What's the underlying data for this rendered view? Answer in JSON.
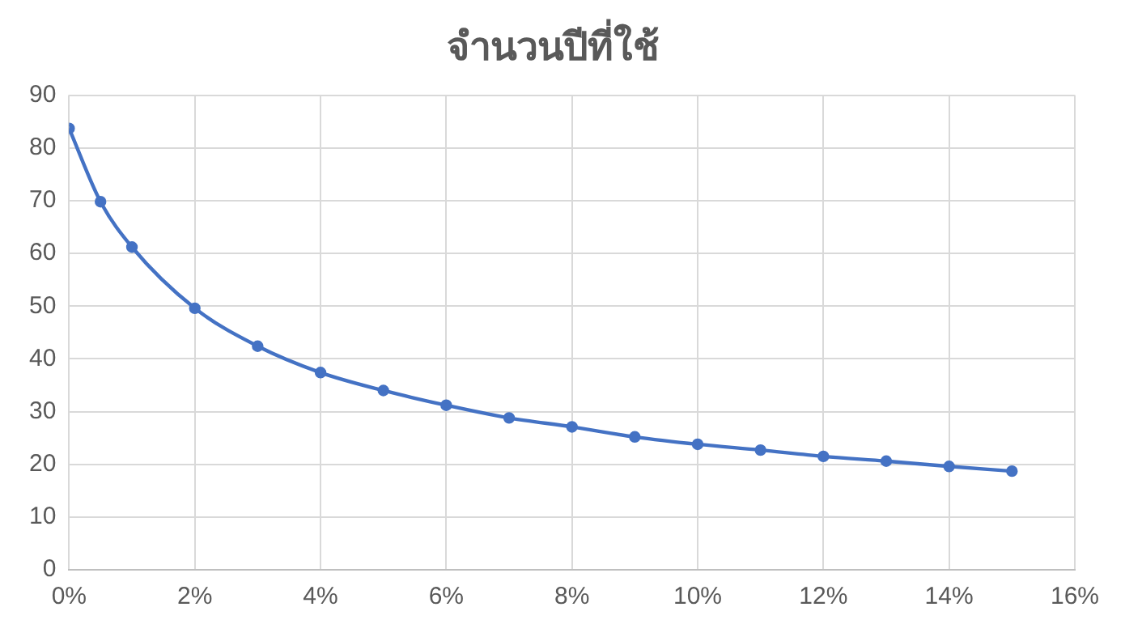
{
  "chart_data": {
    "type": "line",
    "title": "จำนวนปีที่ใช้",
    "x": [
      0,
      0.5,
      1,
      2,
      3,
      4,
      5,
      6,
      7,
      8,
      9,
      10,
      11,
      12,
      13,
      14,
      15
    ],
    "series": [
      {
        "color": "#4472c4",
        "values": [
          83.7,
          69.8,
          61.2,
          49.6,
          42.4,
          37.4,
          34.0,
          31.2,
          28.8,
          27.1,
          25.2,
          23.8,
          22.7,
          21.5,
          20.6,
          19.6,
          18.7
        ]
      }
    ],
    "xlim": [
      0,
      16
    ],
    "xticks": [
      {
        "value": 0,
        "label": "0%"
      },
      {
        "value": 2,
        "label": "2%"
      },
      {
        "value": 4,
        "label": "4%"
      },
      {
        "value": 6,
        "label": "6%"
      },
      {
        "value": 8,
        "label": "8%"
      },
      {
        "value": 10,
        "label": "10%"
      },
      {
        "value": 12,
        "label": "12%"
      },
      {
        "value": 14,
        "label": "14%"
      },
      {
        "value": 16,
        "label": "16%"
      }
    ],
    "ylim": [
      0,
      90
    ],
    "yticks": [
      0,
      10,
      20,
      30,
      40,
      50,
      60,
      70,
      80,
      90
    ],
    "grid": true,
    "legend": false,
    "marker": "circle",
    "line_style": "solid"
  }
}
